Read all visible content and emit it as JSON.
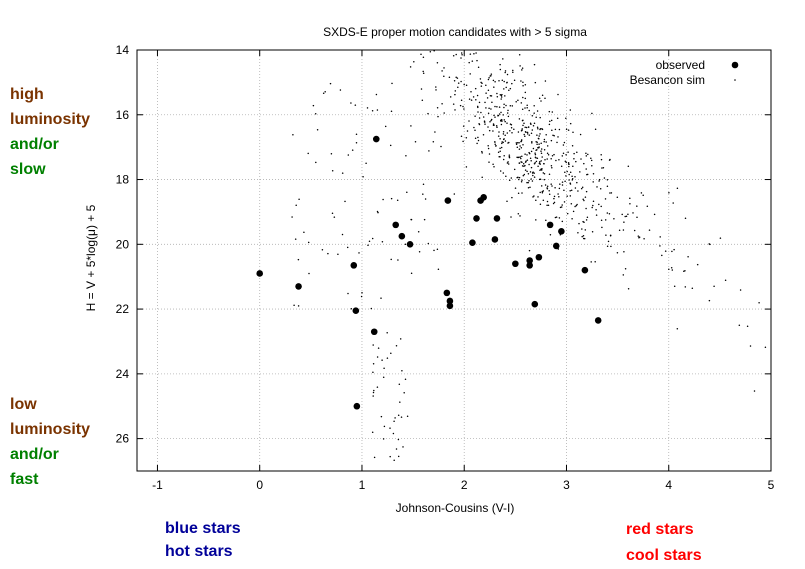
{
  "annotations": {
    "top_left": {
      "line1": "high",
      "line2": "luminosity",
      "line3": "and/or",
      "line4": "slow",
      "color_lum": "#7a3300",
      "color_speed": "#008000"
    },
    "bottom_left": {
      "line1": "low",
      "line2": "luminosity",
      "line3": "and/or",
      "line4": "fast",
      "color_lum": "#7a3300",
      "color_speed": "#008000"
    },
    "bottom_blue": {
      "line1": "blue stars",
      "line2": "hot stars",
      "color": "#000099"
    },
    "bottom_red": {
      "line1": "red stars",
      "line2": "cool stars",
      "color": "#ff0000"
    }
  },
  "chart_data": {
    "type": "scatter",
    "title": "SXDS-E proper motion candidates with > 5 sigma",
    "xlabel": "Johnson-Cousins (V-I)",
    "ylabel": "H = V + 5*log(μ) + 5",
    "xlim": [
      -1.2,
      5.0
    ],
    "ylim": [
      27.0,
      14.0
    ],
    "y_inverted": true,
    "xticks": [
      -1,
      0,
      1,
      2,
      3,
      4,
      5
    ],
    "xtick_labels": [
      "-1",
      "0",
      "1",
      "2",
      "3",
      "4",
      "5"
    ],
    "yticks": [
      14,
      16,
      18,
      20,
      22,
      24,
      26
    ],
    "ytick_labels": [
      "14",
      "16",
      "18",
      "20",
      "22",
      "24",
      "26"
    ],
    "grid": true,
    "legend_placement": "top-right",
    "series": [
      {
        "name": "observed",
        "marker": "filled-circle",
        "color": "#000000",
        "points": [
          [
            0.0,
            20.9
          ],
          [
            0.38,
            21.3
          ],
          [
            0.92,
            20.65
          ],
          [
            0.94,
            22.05
          ],
          [
            0.95,
            25.0
          ],
          [
            1.12,
            22.7
          ],
          [
            1.14,
            16.75
          ],
          [
            1.33,
            19.4
          ],
          [
            1.39,
            19.75
          ],
          [
            1.47,
            20.0
          ],
          [
            1.83,
            21.5
          ],
          [
            1.86,
            21.75
          ],
          [
            1.86,
            21.9
          ],
          [
            1.84,
            18.65
          ],
          [
            2.08,
            19.95
          ],
          [
            2.12,
            19.2
          ],
          [
            2.16,
            18.65
          ],
          [
            2.19,
            18.55
          ],
          [
            2.3,
            19.85
          ],
          [
            2.32,
            19.2
          ],
          [
            2.5,
            20.6
          ],
          [
            2.64,
            20.5
          ],
          [
            2.64,
            20.65
          ],
          [
            2.69,
            21.85
          ],
          [
            2.73,
            20.4
          ],
          [
            2.84,
            19.4
          ],
          [
            2.9,
            20.05
          ],
          [
            2.95,
            19.6
          ],
          [
            3.18,
            20.8
          ],
          [
            3.31,
            22.35
          ]
        ]
      },
      {
        "name": "Besancon sim",
        "marker": "dot",
        "color": "#000000",
        "points": []
      }
    ]
  }
}
